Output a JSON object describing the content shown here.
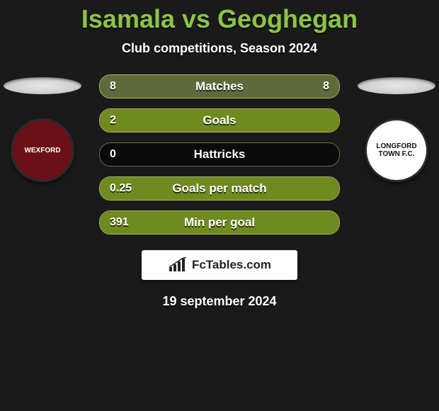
{
  "title": "Isamala vs Geoghegan",
  "subtitle": "Club competitions, Season 2024",
  "date": "19 september 2024",
  "brand": {
    "name": "FcTables.com"
  },
  "colors": {
    "accent_green": "#8bc34a",
    "bg": "#1a1a1a",
    "bar_bg": "#0b0b0b",
    "text": "#ffffff"
  },
  "left_club": {
    "name": "Wexford",
    "badge_bg": "#6b1018",
    "badge_text_color": "#ffffff",
    "badge_label": "WEXFORD"
  },
  "right_club": {
    "name": "Longford Town",
    "badge_bg": "#ffffff",
    "badge_text_color": "#111111",
    "badge_label": "LONGFORD TOWN F.C."
  },
  "bars": [
    {
      "label": "Matches",
      "left": "8",
      "right": "8",
      "fill_left_pct": 50,
      "fill_right_pct": 50,
      "left_color": "#5f6a3a",
      "right_color": "#5f6a3a",
      "border_color": "#a6b85e"
    },
    {
      "label": "Goals",
      "left": "2",
      "right": "",
      "fill_left_pct": 100,
      "fill_right_pct": 0,
      "left_color": "#6f8a1f",
      "right_color": "#000000",
      "border_color": "#a6b85e"
    },
    {
      "label": "Hattricks",
      "left": "0",
      "right": "",
      "fill_left_pct": 0,
      "fill_right_pct": 0,
      "left_color": "#000000",
      "right_color": "#000000",
      "border_color": "#6e6e3a"
    },
    {
      "label": "Goals per match",
      "left": "0.25",
      "right": "",
      "fill_left_pct": 100,
      "fill_right_pct": 0,
      "left_color": "#6f8a1f",
      "right_color": "#000000",
      "border_color": "#a6b85e"
    },
    {
      "label": "Min per goal",
      "left": "391",
      "right": "",
      "fill_left_pct": 100,
      "fill_right_pct": 0,
      "left_color": "#6f8a1f",
      "right_color": "#000000",
      "border_color": "#a6b85e"
    }
  ]
}
